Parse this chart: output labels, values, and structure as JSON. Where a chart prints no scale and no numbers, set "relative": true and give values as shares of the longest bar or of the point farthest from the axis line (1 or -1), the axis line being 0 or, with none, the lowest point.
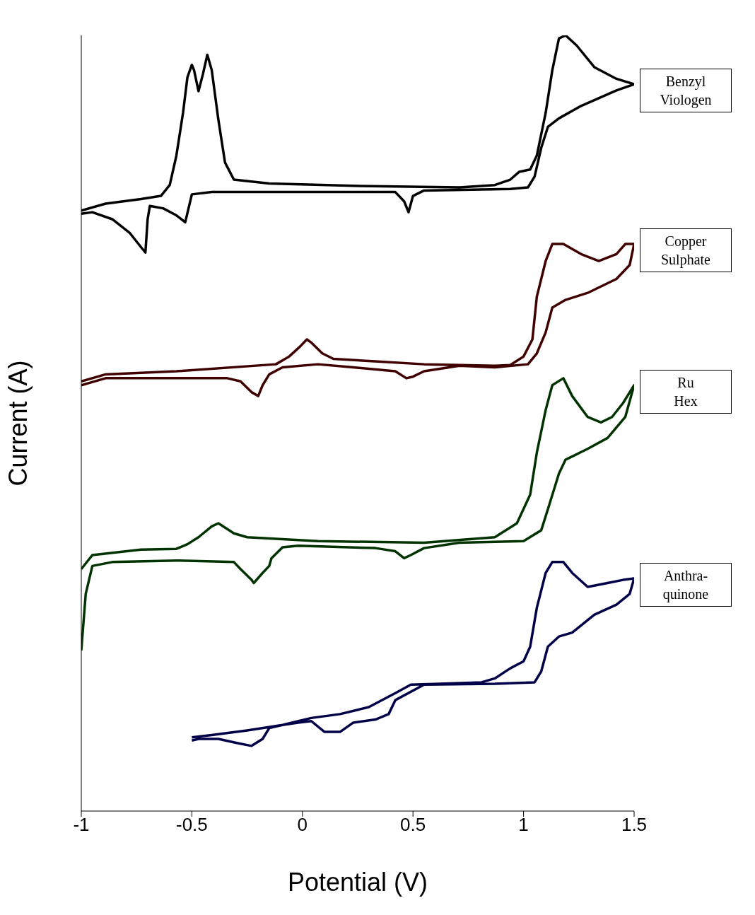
{
  "chart_data": {
    "type": "line",
    "xlabel": "Potential (V)",
    "ylabel": "Current (A)",
    "relative": true,
    "xlim": [
      -1,
      1.5
    ],
    "xticks": [
      -1,
      -0.5,
      0,
      0.5,
      1,
      1.5
    ],
    "series": [
      {
        "name": "Benzyl Viologen",
        "color": "#000000",
        "x": [
          -1.0,
          -0.89,
          -0.73,
          -0.64,
          -0.6,
          -0.57,
          -0.54,
          -0.52,
          -0.5,
          -0.49,
          -0.47,
          -0.45,
          -0.43,
          -0.41,
          -0.38,
          -0.35,
          -0.31,
          -0.15,
          0.23,
          0.71,
          0.87,
          0.94,
          0.98,
          1.03,
          1.06,
          1.1,
          1.13,
          1.16,
          1.19,
          1.24,
          1.32,
          1.42,
          1.5,
          1.42,
          1.26,
          1.16,
          1.11,
          1.08,
          1.05,
          1.02,
          0.94,
          0.55,
          0.5,
          0.48,
          0.46,
          0.42,
          -0.41,
          -0.5,
          -0.53,
          -0.57,
          -0.63,
          -0.69,
          -0.7,
          -0.71,
          -0.73,
          -0.78,
          -0.86,
          -0.95,
          -1.0
        ],
        "values": [
          0.774,
          0.783,
          0.789,
          0.793,
          0.807,
          0.845,
          0.9,
          0.946,
          0.962,
          0.955,
          0.928,
          0.95,
          0.975,
          0.955,
          0.891,
          0.836,
          0.814,
          0.809,
          0.806,
          0.804,
          0.807,
          0.814,
          0.824,
          0.827,
          0.845,
          0.9,
          0.955,
          0.996,
          1.0,
          0.987,
          0.959,
          0.944,
          0.937,
          0.929,
          0.909,
          0.893,
          0.882,
          0.855,
          0.818,
          0.804,
          0.802,
          0.8,
          0.793,
          0.772,
          0.786,
          0.798,
          0.798,
          0.795,
          0.759,
          0.768,
          0.777,
          0.78,
          0.763,
          0.72,
          0.727,
          0.745,
          0.763,
          0.772,
          0.77
        ]
      },
      {
        "name": "Copper Sulphate",
        "color": "#400000",
        "x": [
          -1.0,
          -0.89,
          -0.57,
          -0.12,
          -0.06,
          -0.01,
          0.02,
          0.04,
          0.09,
          0.14,
          0.55,
          0.87,
          0.94,
          1.0,
          1.04,
          1.06,
          1.1,
          1.13,
          1.18,
          1.26,
          1.34,
          1.42,
          1.46,
          1.5,
          1.48,
          1.42,
          1.29,
          1.19,
          1.13,
          1.1,
          1.06,
          1.02,
          0.87,
          0.71,
          0.55,
          0.5,
          0.47,
          0.42,
          0.23,
          0.07,
          -0.09,
          -0.15,
          -0.18,
          -0.2,
          -0.23,
          -0.28,
          -0.34,
          -0.57,
          -0.89,
          -1.0
        ],
        "values": [
          0.554,
          0.563,
          0.567,
          0.576,
          0.586,
          0.599,
          0.608,
          0.604,
          0.59,
          0.583,
          0.576,
          0.574,
          0.575,
          0.586,
          0.608,
          0.663,
          0.709,
          0.731,
          0.731,
          0.718,
          0.709,
          0.718,
          0.731,
          0.731,
          0.704,
          0.686,
          0.668,
          0.659,
          0.649,
          0.617,
          0.59,
          0.576,
          0.572,
          0.574,
          0.567,
          0.56,
          0.558,
          0.567,
          0.572,
          0.576,
          0.572,
          0.563,
          0.549,
          0.535,
          0.54,
          0.554,
          0.558,
          0.558,
          0.558,
          0.549
        ]
      },
      {
        "name": "Ru Hex",
        "color": "#003300",
        "x": [
          -1.0,
          -0.95,
          -0.73,
          -0.57,
          -0.52,
          -0.47,
          -0.41,
          -0.38,
          -0.31,
          -0.25,
          0.07,
          0.55,
          0.87,
          0.97,
          1.03,
          1.06,
          1.1,
          1.13,
          1.18,
          1.22,
          1.29,
          1.35,
          1.4,
          1.45,
          1.5,
          1.46,
          1.38,
          1.29,
          1.19,
          1.16,
          1.11,
          1.08,
          1.0,
          0.71,
          0.55,
          0.49,
          0.46,
          0.42,
          0.33,
          -0.02,
          -0.09,
          -0.14,
          -0.15,
          -0.18,
          -0.22,
          -0.23,
          -0.28,
          -0.31,
          -0.57,
          -0.86,
          -0.95,
          -0.98,
          -1.0
        ],
        "values": [
          0.312,
          0.33,
          0.337,
          0.338,
          0.344,
          0.353,
          0.367,
          0.371,
          0.358,
          0.353,
          0.348,
          0.346,
          0.353,
          0.371,
          0.408,
          0.462,
          0.517,
          0.549,
          0.558,
          0.535,
          0.508,
          0.501,
          0.508,
          0.526,
          0.549,
          0.508,
          0.481,
          0.467,
          0.453,
          0.435,
          0.389,
          0.362,
          0.348,
          0.346,
          0.339,
          0.33,
          0.326,
          0.335,
          0.339,
          0.342,
          0.34,
          0.326,
          0.316,
          0.307,
          0.294,
          0.298,
          0.312,
          0.321,
          0.323,
          0.321,
          0.316,
          0.28,
          0.207
        ]
      },
      {
        "name": "Anthra- quinone",
        "color": "#000048",
        "x": [
          -0.5,
          -0.41,
          -0.25,
          -0.09,
          0.04,
          0.17,
          0.3,
          0.42,
          0.49,
          0.62,
          0.81,
          0.87,
          0.94,
          1.0,
          1.03,
          1.06,
          1.1,
          1.13,
          1.18,
          1.22,
          1.29,
          1.38,
          1.45,
          1.5,
          1.48,
          1.42,
          1.32,
          1.22,
          1.16,
          1.11,
          1.08,
          1.05,
          0.87,
          0.55,
          0.42,
          0.39,
          0.33,
          0.23,
          0.17,
          0.1,
          0.04,
          -0.02,
          -0.09,
          -0.15,
          -0.18,
          -0.23,
          -0.3,
          -0.38,
          -0.47,
          -0.5
        ],
        "values": [
          0.095,
          0.098,
          0.104,
          0.111,
          0.12,
          0.125,
          0.134,
          0.152,
          0.163,
          0.164,
          0.166,
          0.171,
          0.184,
          0.193,
          0.212,
          0.262,
          0.307,
          0.321,
          0.321,
          0.307,
          0.289,
          0.294,
          0.298,
          0.3,
          0.28,
          0.266,
          0.253,
          0.23,
          0.225,
          0.212,
          0.18,
          0.166,
          0.164,
          0.163,
          0.143,
          0.125,
          0.118,
          0.114,
          0.102,
          0.102,
          0.116,
          0.114,
          0.111,
          0.107,
          0.093,
          0.084,
          0.088,
          0.093,
          0.093,
          0.091
        ]
      }
    ]
  }
}
